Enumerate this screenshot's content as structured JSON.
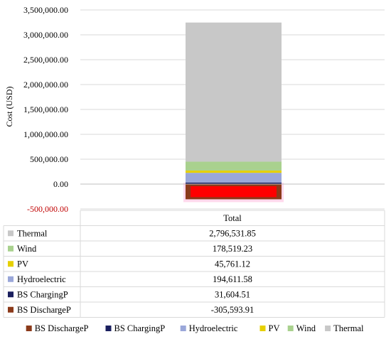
{
  "chart_data": {
    "type": "bar",
    "stacked": true,
    "categories": [
      "Total"
    ],
    "series": [
      {
        "name": "BS DischargeP",
        "values": [
          -305593.91
        ],
        "color": "#8B3A1A"
      },
      {
        "name": "BS ChargingP",
        "values": [
          31604.51
        ],
        "color": "#1a1f5e"
      },
      {
        "name": "Hydroelectric",
        "values": [
          194611.58
        ],
        "color": "#9aa7d9"
      },
      {
        "name": "PV",
        "values": [
          45761.12
        ],
        "color": "#e6d000"
      },
      {
        "name": "Wind",
        "values": [
          178519.23
        ],
        "color": "#a9d18e"
      },
      {
        "name": "Thermal",
        "values": [
          2796531.85
        ],
        "color": "#c8c8c8"
      }
    ],
    "table_rows": [
      {
        "name": "Thermal",
        "value": "2,796,531.85",
        "color": "#c8c8c8"
      },
      {
        "name": "Wind",
        "value": "178,519.23",
        "color": "#a9d18e"
      },
      {
        "name": "PV",
        "value": "45,761.12",
        "color": "#e6d000"
      },
      {
        "name": "Hydroelectric",
        "value": "194,611.58",
        "color": "#9aa7d9"
      },
      {
        "name": "BS ChargingP",
        "value": "31,604.51",
        "color": "#1a1f5e"
      },
      {
        "name": "BS DischargeP",
        "value": "-305,593.91",
        "color": "#8B3A1A"
      }
    ],
    "yticks": [
      "3,500,000.00",
      "3,000,000.00",
      "2,500,000.00",
      "2,000,000.00",
      "1,500,000.00",
      "1,000,000.00",
      "500,000.00",
      "0.00",
      "-500,000.00"
    ],
    "ytick_values": [
      3500000,
      3000000,
      2500000,
      2000000,
      1500000,
      1000000,
      500000,
      0,
      -500000
    ],
    "ylim": [
      -500000,
      3500000
    ],
    "ylabel": "Cost (USD)",
    "xlabel": "",
    "title": "",
    "column_header": "Total",
    "grid": true,
    "legend_position": "bottom",
    "negative_tick_color": "#c00000",
    "highlight_color": "#ff0000"
  }
}
